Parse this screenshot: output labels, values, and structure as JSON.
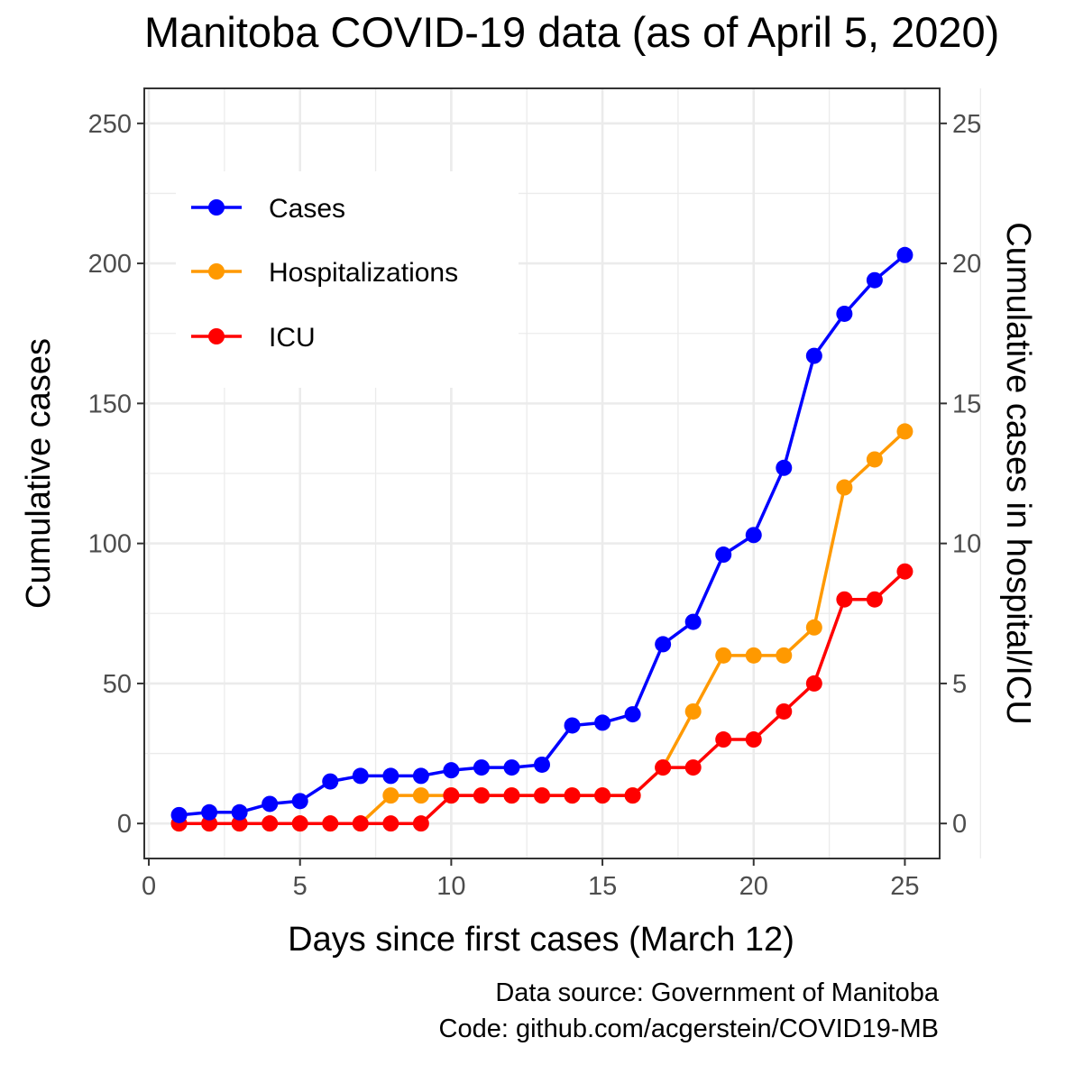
{
  "chart_data": {
    "type": "line",
    "title": "Manitoba COVID-19 data (as of April 5, 2020)",
    "xlabel": "Days since first cases (March 12)",
    "ylabel": "Cumulative cases",
    "ylabel_right": "Cumulative cases in hospital/ICU",
    "xlim": [
      -0.15,
      26.15
    ],
    "ylim": [
      -12.5,
      262.5
    ],
    "ylim_right": [
      -1.25,
      26.25
    ],
    "x_ticks": [
      0,
      5,
      10,
      15,
      20,
      25
    ],
    "y_ticks": [
      0,
      50,
      100,
      150,
      200,
      250
    ],
    "y_ticks_right": [
      0,
      5,
      10,
      15,
      20,
      25
    ],
    "grid": true,
    "legend_position": "top-left",
    "x": [
      1,
      2,
      3,
      4,
      5,
      6,
      7,
      8,
      9,
      10,
      11,
      12,
      13,
      14,
      15,
      16,
      17,
      18,
      19,
      20,
      21,
      22,
      23,
      24,
      25
    ],
    "series": [
      {
        "name": "Cases",
        "axis": "left",
        "color": "#0000FF",
        "values": [
          3,
          4,
          4,
          7,
          8,
          15,
          17,
          17,
          17,
          19,
          20,
          20,
          21,
          35,
          36,
          39,
          64,
          72,
          96,
          103,
          127,
          167,
          182,
          194,
          203
        ]
      },
      {
        "name": "Hospitalizations",
        "axis": "right",
        "color": "#FF9900",
        "values": [
          0,
          0,
          0,
          0,
          0,
          0,
          0,
          1,
          1,
          1,
          1,
          1,
          1,
          1,
          1,
          1,
          2,
          4,
          6,
          6,
          6,
          7,
          12,
          13,
          14
        ]
      },
      {
        "name": "ICU",
        "axis": "right",
        "color": "#FF0000",
        "values": [
          0,
          0,
          0,
          0,
          0,
          0,
          0,
          0,
          0,
          1,
          1,
          1,
          1,
          1,
          1,
          1,
          2,
          2,
          3,
          3,
          4,
          5,
          8,
          8,
          9
        ]
      }
    ],
    "caption_lines": [
      "Data source: Government of Manitoba",
      "Code: github.com/acgerstein/COVID19-MB"
    ]
  }
}
